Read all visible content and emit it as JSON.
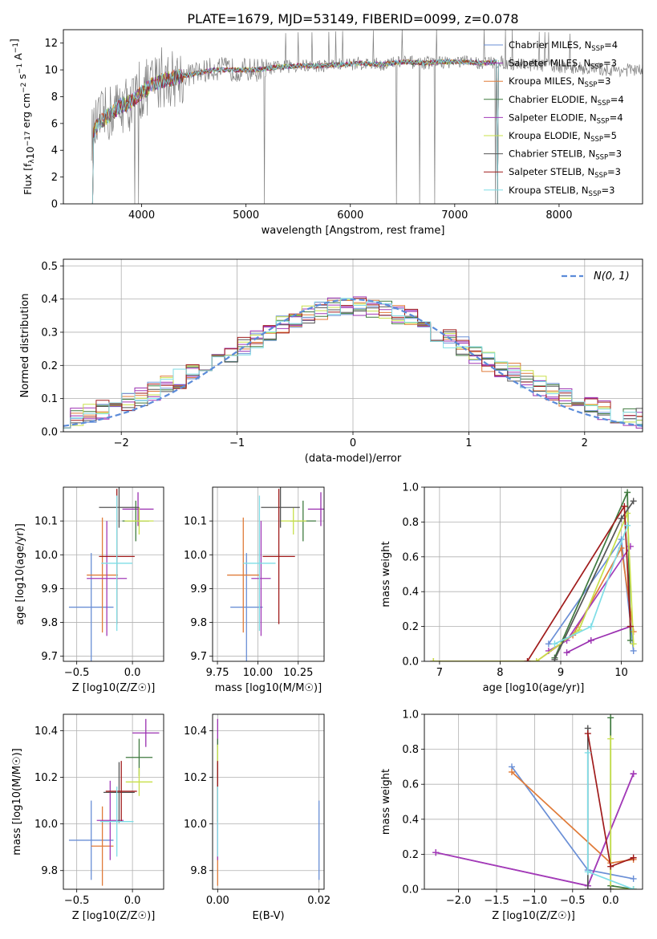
{
  "figure": {
    "title": "PLATE=1679, MJD=53149, FIBERID=0099, z=0.078"
  },
  "series_meta": [
    {
      "name": "Chabrier MILES, N",
      "sub": "SSP",
      "tail": "=4",
      "color": "#6a8fd6"
    },
    {
      "name": "Salpeter MILES, N",
      "sub": "SSP",
      "tail": "=3",
      "color": "#9a2fb0"
    },
    {
      "name": "Kroupa MILES, N",
      "sub": "SSP",
      "tail": "=3",
      "color": "#e07b39"
    },
    {
      "name": "Chabrier ELODIE, N",
      "sub": "SSP",
      "tail": "=4",
      "color": "#3f7a3f"
    },
    {
      "name": "Salpeter ELODIE, N",
      "sub": "SSP",
      "tail": "=4",
      "color": "#a33bb8"
    },
    {
      "name": "Kroupa ELODIE, N",
      "sub": "SSP",
      "tail": "=5",
      "color": "#c8e04a"
    },
    {
      "name": "Chabrier STELIB, N",
      "sub": "SSP",
      "tail": "=3",
      "color": "#555555"
    },
    {
      "name": "Salpeter STELIB, N",
      "sub": "SSP",
      "tail": "=3",
      "color": "#a01c1c"
    },
    {
      "name": "Kroupa STELIB, N",
      "sub": "SSP",
      "tail": "=3",
      "color": "#7fdde6"
    }
  ],
  "chart_data": [
    {
      "id": "spectrum",
      "type": "line",
      "xlabel": "wavelength [Angstrom, rest frame]",
      "ylabel": "Flux [f_λ 10^-17 erg cm^-2 s^-1 A^-1]",
      "xlim": [
        3250,
        8800
      ],
      "ylim": [
        0,
        13
      ],
      "xticks": [
        4000,
        5000,
        6000,
        7000,
        8000
      ],
      "yticks": [
        0,
        2,
        4,
        6,
        8,
        10,
        12
      ],
      "legend": "right",
      "data_series": {
        "name": "",
        "color": "#808080",
        "x": [
          3520,
          3600,
          3700,
          3800,
          3900,
          4000,
          4100,
          4200,
          4300,
          4500,
          4700,
          4900,
          5100,
          5300,
          5500,
          5700,
          5900,
          6100,
          6300,
          6500,
          6700,
          6900,
          7100,
          7300,
          7420,
          7500,
          7700,
          7900,
          8100,
          8300,
          8500,
          8700,
          8800
        ],
        "y": [
          5.0,
          6.2,
          6.8,
          7.4,
          7.5,
          8.3,
          9.0,
          9.2,
          9.4,
          9.7,
          10.1,
          10.0,
          10.0,
          10.2,
          10.3,
          10.3,
          10.4,
          10.5,
          10.4,
          10.6,
          10.5,
          10.6,
          10.6,
          10.5,
          10.6,
          10.5,
          10.4,
          10.3,
          10.2,
          10.1,
          10.0,
          10.0,
          9.9
        ]
      },
      "model_x": [
        3520,
        3600,
        3700,
        3800,
        3900,
        4000,
        4100,
        4200,
        4300,
        4500,
        4700,
        4900,
        5100,
        5300,
        5500,
        5700,
        5900,
        6100,
        6300,
        6500,
        6700,
        6900,
        7100,
        7300,
        7420
      ],
      "model_y": [
        5.0,
        6.1,
        6.7,
        7.3,
        7.6,
        8.3,
        8.9,
        9.2,
        9.4,
        9.7,
        10.0,
        10.0,
        10.0,
        10.2,
        10.3,
        10.3,
        10.4,
        10.5,
        10.4,
        10.6,
        10.5,
        10.6,
        10.6,
        10.5,
        10.6
      ]
    },
    {
      "id": "residuals",
      "type": "histogram",
      "xlabel": "(data-model)/error",
      "ylabel": "Normed distribution",
      "xlim": [
        -2.5,
        2.5
      ],
      "ylim": [
        0,
        0.52
      ],
      "xticks": [
        -2,
        -1,
        0,
        1,
        2
      ],
      "yticks": [
        0.0,
        0.1,
        0.2,
        0.3,
        0.4,
        0.5
      ],
      "bin_width": 0.111,
      "normal_curve_label": "N(0, 1)",
      "normal_curve_color": "#5b8bd9",
      "legend": "top-right"
    },
    {
      "id": "age_vs_Z",
      "type": "errorbar",
      "xlabel": "Z [log10(Z/Z☉)]",
      "ylabel": "age [log10(age/yr)]",
      "xlim": [
        -0.62,
        0.28
      ],
      "ylim": [
        9.685,
        10.2
      ],
      "xticks": [
        -0.5,
        0.0
      ],
      "yticks": [
        9.7,
        9.8,
        9.9,
        10.0,
        10.1
      ],
      "points": [
        {
          "x": -0.37,
          "y": 9.845,
          "xerr": 0.2,
          "yerr": 0.16
        },
        {
          "x": 0.05,
          "y": 10.135,
          "xerr": 0.14,
          "yerr": 0.05
        },
        {
          "x": -0.27,
          "y": 9.94,
          "xerr": 0.14,
          "yerr": 0.17
        },
        {
          "x": 0.03,
          "y": 10.1,
          "xerr": 0.12,
          "yerr": 0.06
        },
        {
          "x": -0.23,
          "y": 9.93,
          "xerr": 0.18,
          "yerr": 0.17
        },
        {
          "x": 0.06,
          "y": 10.1,
          "xerr": 0.13,
          "yerr": 0.04
        },
        {
          "x": -0.12,
          "y": 10.14,
          "xerr": 0.18,
          "yerr": 0.06
        },
        {
          "x": -0.14,
          "y": 9.995,
          "xerr": 0.16,
          "yerr": 0.2
        },
        {
          "x": -0.14,
          "y": 9.975,
          "xerr": 0.14,
          "yerr": 0.2
        }
      ]
    },
    {
      "id": "age_vs_mass",
      "type": "errorbar",
      "xlabel": "mass [log10(M/M☉)]",
      "ylabel": "",
      "xlim": [
        9.72,
        10.41
      ],
      "ylim": [
        9.685,
        10.2
      ],
      "xticks": [
        9.75,
        10.0,
        10.25
      ],
      "yticks": [
        9.7,
        9.8,
        9.9,
        10.0,
        10.1
      ],
      "points": [
        {
          "x": 9.93,
          "y": 9.845,
          "xerr": 0.1,
          "yerr": 0.16
        },
        {
          "x": 10.39,
          "y": 10.135,
          "xerr": 0.08,
          "yerr": 0.05
        },
        {
          "x": 9.91,
          "y": 9.94,
          "xerr": 0.1,
          "yerr": 0.17
        },
        {
          "x": 10.28,
          "y": 10.1,
          "xerr": 0.08,
          "yerr": 0.06
        },
        {
          "x": 10.02,
          "y": 9.93,
          "xerr": 0.06,
          "yerr": 0.17
        },
        {
          "x": 10.22,
          "y": 10.1,
          "xerr": 0.08,
          "yerr": 0.04
        },
        {
          "x": 10.14,
          "y": 10.14,
          "xerr": 0.12,
          "yerr": 0.06
        },
        {
          "x": 10.13,
          "y": 9.995,
          "xerr": 0.1,
          "yerr": 0.2
        },
        {
          "x": 10.01,
          "y": 9.975,
          "xerr": 0.1,
          "yerr": 0.2
        }
      ]
    },
    {
      "id": "massweight_vs_age",
      "type": "line",
      "xlabel": "age [log10(age/yr)]",
      "ylabel": "mass weight",
      "xlim": [
        6.75,
        10.35
      ],
      "ylim": [
        0,
        1
      ],
      "xticks": [
        7,
        8,
        9,
        10
      ],
      "yticks": [
        0.0,
        0.2,
        0.4,
        0.6,
        0.8,
        1.0
      ],
      "series": [
        {
          "x": [
            8.8,
            10.0,
            10.2
          ],
          "y": [
            0.1,
            0.7,
            0.06
          ]
        },
        {
          "x": [
            9.1,
            9.5,
            10.15
          ],
          "y": [
            0.05,
            0.12,
            0.2
          ]
        },
        {
          "x": [
            6.9,
            8.6,
            9.2,
            10.0,
            10.2
          ],
          "y": [
            0.0,
            0.0,
            0.15,
            0.65,
            0.17
          ]
        },
        {
          "x": [
            8.9,
            10.1,
            10.15
          ],
          "y": [
            0.02,
            0.97,
            0.12
          ]
        },
        {
          "x": [
            8.8,
            9.1,
            10.15
          ],
          "y": [
            0.06,
            0.12,
            0.66
          ]
        },
        {
          "x": [
            6.9,
            8.6,
            9.3,
            10.1,
            10.2
          ],
          "y": [
            0.0,
            0.0,
            0.18,
            0.85,
            0.1
          ]
        },
        {
          "x": [
            8.9,
            10.0,
            10.2
          ],
          "y": [
            0.01,
            0.82,
            0.92
          ]
        },
        {
          "x": [
            8.45,
            10.05,
            10.15
          ],
          "y": [
            0.0,
            0.89,
            0.2
          ]
        },
        {
          "x": [
            8.9,
            9.5,
            10.1
          ],
          "y": [
            0.1,
            0.2,
            0.78
          ]
        }
      ]
    },
    {
      "id": "mass_vs_Z",
      "type": "errorbar",
      "xlabel": "Z [log10(Z/Z☉)]",
      "ylabel": "mass [log10(M/M☉)]",
      "xlim": [
        -0.62,
        0.28
      ],
      "ylim": [
        9.72,
        10.47
      ],
      "xticks": [
        -0.5,
        0.0
      ],
      "yticks": [
        9.8,
        10.0,
        10.2,
        10.4
      ],
      "points": [
        {
          "x": -0.37,
          "y": 9.93,
          "xerr": 0.2,
          "yerr": 0.17
        },
        {
          "x": 0.12,
          "y": 10.39,
          "xerr": 0.12,
          "yerr": 0.06
        },
        {
          "x": -0.27,
          "y": 9.905,
          "xerr": 0.1,
          "yerr": 0.17
        },
        {
          "x": 0.06,
          "y": 10.285,
          "xerr": 0.12,
          "yerr": 0.08
        },
        {
          "x": -0.2,
          "y": 10.015,
          "xerr": 0.12,
          "yerr": 0.17
        },
        {
          "x": 0.06,
          "y": 10.18,
          "xerr": 0.12,
          "yerr": 0.06
        },
        {
          "x": -0.12,
          "y": 10.135,
          "xerr": 0.14,
          "yerr": 0.13
        },
        {
          "x": -0.1,
          "y": 10.14,
          "xerr": 0.14,
          "yerr": 0.13
        },
        {
          "x": -0.14,
          "y": 10.01,
          "xerr": 0.15,
          "yerr": 0.15
        }
      ]
    },
    {
      "id": "mass_vs_ebv",
      "type": "errorbar",
      "xlabel": "E(B-V)",
      "ylabel": "",
      "xlim": [
        -0.001,
        0.021
      ],
      "ylim": [
        9.72,
        10.47
      ],
      "xticks": [
        0.0,
        0.02
      ],
      "yticks": [
        9.8,
        10.0,
        10.2,
        10.4
      ],
      "points": [
        {
          "x": 0.02,
          "y": 9.93,
          "xerr": 0.0,
          "yerr": 0.17
        },
        {
          "x": 0.0,
          "y": 10.39,
          "xerr": 0.0,
          "yerr": 0.06
        },
        {
          "x": 0.0,
          "y": 9.905,
          "xerr": 0.0,
          "yerr": 0.17
        },
        {
          "x": 0.0,
          "y": 10.285,
          "xerr": 0.0,
          "yerr": 0.08
        },
        {
          "x": 0.0,
          "y": 10.015,
          "xerr": 0.0,
          "yerr": 0.17
        },
        {
          "x": 0.0,
          "y": 10.18,
          "xerr": 0.0,
          "yerr": 0.16
        },
        {
          "x": 0.0,
          "y": 10.135,
          "xerr": 0.0,
          "yerr": 0.13
        },
        {
          "x": 0.0,
          "y": 10.14,
          "xerr": 0.0,
          "yerr": 0.13
        },
        {
          "x": 0.0,
          "y": 10.01,
          "xerr": 0.0,
          "yerr": 0.15
        }
      ]
    },
    {
      "id": "massweight_vs_Z",
      "type": "line",
      "xlabel": "Z [log10(Z/Z☉)]",
      "ylabel": "mass weight",
      "xlim": [
        -2.45,
        0.42
      ],
      "ylim": [
        0,
        1
      ],
      "xticks": [
        -2.0,
        -1.5,
        -1.0,
        -0.5,
        0.0
      ],
      "yticks": [
        0.0,
        0.2,
        0.4,
        0.6,
        0.8,
        1.0
      ],
      "series": [
        {
          "x": [
            -1.3,
            -0.3,
            0.3
          ],
          "y": [
            0.7,
            0.11,
            0.06
          ]
        },
        {
          "x": [
            -2.3,
            -0.3,
            0.3
          ],
          "y": [
            0.21,
            0.02,
            0.66
          ]
        },
        {
          "x": [
            -1.3,
            0.0,
            0.3
          ],
          "y": [
            0.67,
            0.15,
            0.17
          ]
        },
        {
          "x": [
            0.0,
            0.0,
            0.3
          ],
          "y": [
            0.98,
            0.02,
            0.0
          ]
        },
        {
          "x": [
            -2.3,
            -0.3,
            0.3
          ],
          "y": [
            0.21,
            0.02,
            0.66
          ]
        },
        {
          "x": [
            0.0,
            0.0,
            0.3
          ],
          "y": [
            0.86,
            0.0,
            0.0
          ]
        },
        {
          "x": [
            -0.3,
            -0.3,
            0.0
          ],
          "y": [
            0.92,
            0.0,
            0.0
          ]
        },
        {
          "x": [
            -0.3,
            0.0,
            0.3
          ],
          "y": [
            0.89,
            0.13,
            0.18
          ]
        },
        {
          "x": [
            -0.3,
            -0.3,
            0.3
          ],
          "y": [
            0.78,
            0.1,
            0.0
          ]
        }
      ]
    }
  ]
}
